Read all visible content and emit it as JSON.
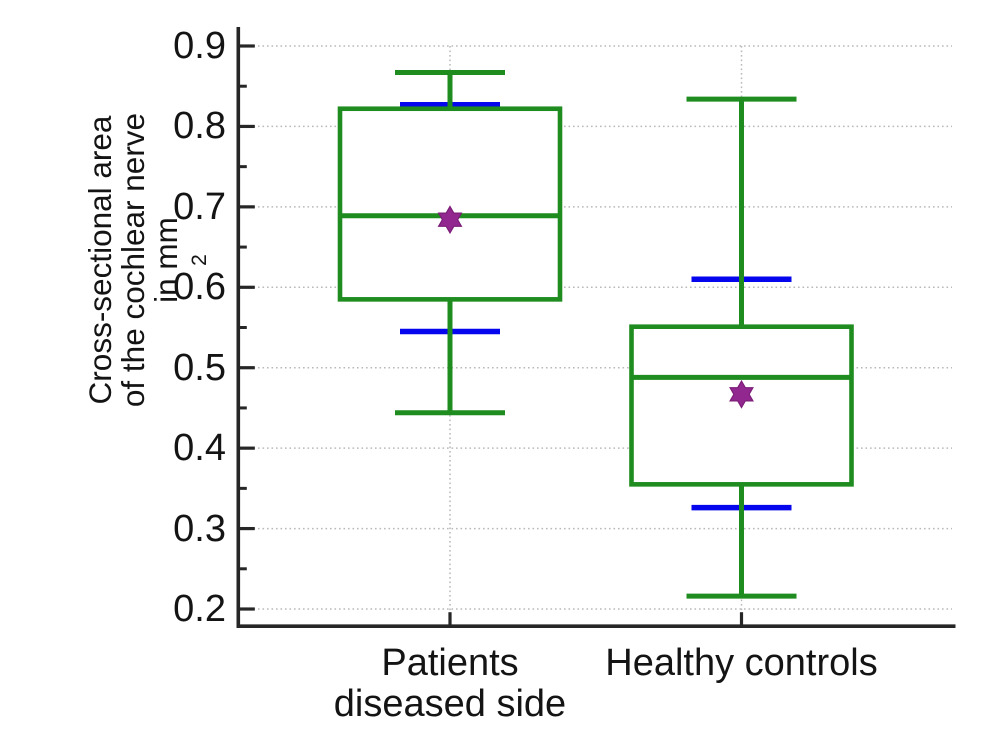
{
  "chart_data": {
    "type": "boxplot",
    "title": "",
    "ylabel_lines": [
      "Cross-sectional area",
      "of the cochlear nerve",
      "in mm"
    ],
    "ylabel_unit_superscript": "2",
    "y_tick_labels": [
      "0.9",
      "0.8",
      "0.7",
      "0.6",
      "0.5",
      "0.4",
      "0.3",
      "0.2"
    ],
    "y_tick_values": [
      0.9,
      0.8,
      0.7,
      0.6,
      0.5,
      0.4,
      0.3,
      0.2
    ],
    "y_minor_tick_values": [
      0.85,
      0.75,
      0.65,
      0.55,
      0.45,
      0.35,
      0.25
    ],
    "ylim": [
      0.178,
      0.924
    ],
    "grid": {
      "show": true,
      "style": "dotted",
      "axes": "both"
    },
    "legend": "none",
    "categories": [
      {
        "label_lines": [
          "Patients",
          "diseased side"
        ]
      },
      {
        "label_lines": [
          "Healthy controls"
        ]
      }
    ],
    "series": [
      {
        "name": "Patients diseased side",
        "whisker_high": 0.867,
        "blue_line_high": 0.827,
        "q3": 0.822,
        "median": 0.689,
        "mean": 0.684,
        "q1": 0.585,
        "blue_line_low": 0.545,
        "whisker_low": 0.444
      },
      {
        "name": "Healthy controls",
        "whisker_high": 0.834,
        "blue_line_high": 0.61,
        "q3": 0.551,
        "median": 0.488,
        "mean": 0.467,
        "q1": 0.355,
        "blue_line_low": 0.326,
        "whisker_low": 0.216
      }
    ],
    "mean_marker_shape": "hexagram",
    "colors": {
      "box": "#1e8c1e",
      "whisker": "#1e8c1e",
      "median": "#1e8c1e",
      "blue_line": "#0505ee",
      "mean_marker": "#92288f",
      "mean_marker_edge": "#7c1d78",
      "axis": "#262626",
      "grid": "#b9b9b9",
      "text": "#141414"
    }
  }
}
